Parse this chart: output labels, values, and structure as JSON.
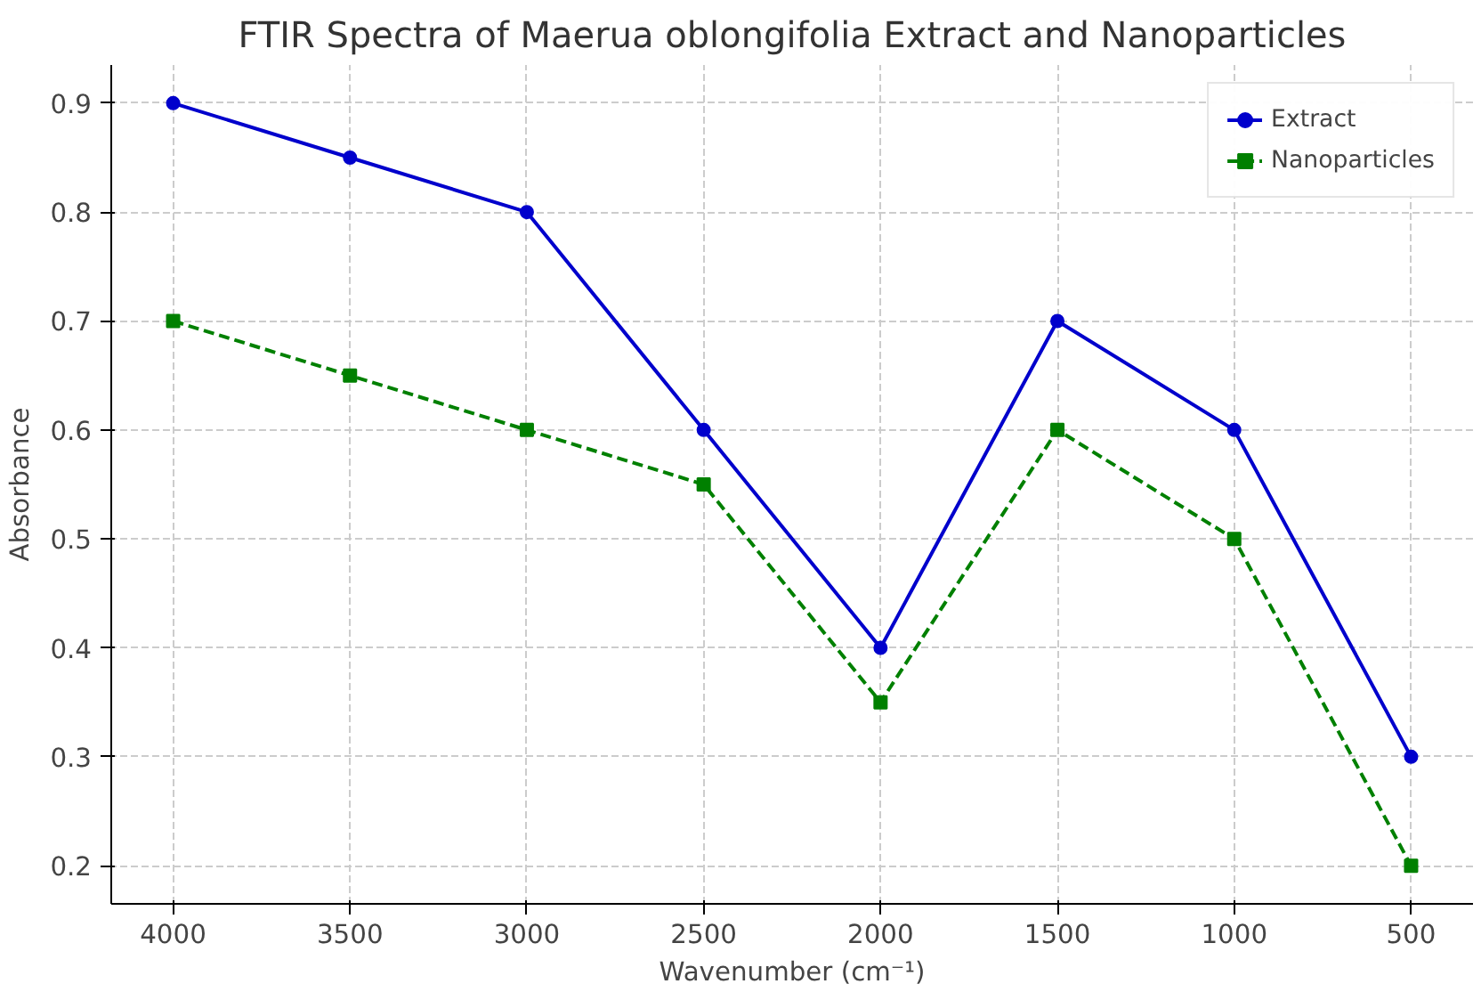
{
  "chart_data": {
    "type": "line",
    "title": "FTIR Spectra of Maerua oblongifolia Extract and Nanoparticles",
    "xlabel": "Wavenumber (cm⁻¹)",
    "ylabel": "Absorbance",
    "x": [
      4000,
      3500,
      3000,
      2500,
      2000,
      1500,
      1000,
      500
    ],
    "series": [
      {
        "name": "Extract",
        "color": "#0000cc",
        "values": [
          0.9,
          0.85,
          0.8,
          0.6,
          0.4,
          0.7,
          0.6,
          0.3
        ],
        "marker": "circle",
        "line_style": "solid"
      },
      {
        "name": "Nanoparticles",
        "color": "#008000",
        "values": [
          0.7,
          0.65,
          0.6,
          0.55,
          0.35,
          0.6,
          0.5,
          0.2
        ],
        "marker": "square",
        "line_style": "dashed"
      }
    ],
    "xlim": [
      4175,
      325
    ],
    "xticks": [
      4000,
      3500,
      3000,
      2500,
      2000,
      1500,
      1000,
      500
    ],
    "ylim": [
      0.165,
      0.935
    ],
    "yticks": [
      0.2,
      0.3,
      0.4,
      0.5,
      0.6,
      0.7,
      0.8,
      0.9
    ],
    "grid": true,
    "legend": "top right"
  }
}
